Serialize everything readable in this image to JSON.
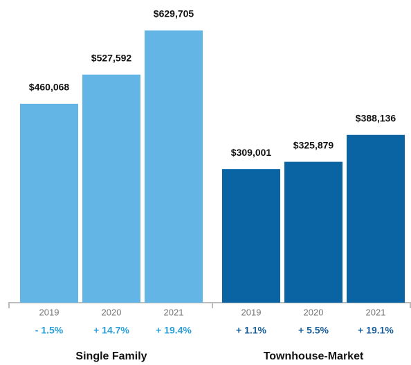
{
  "chart_data": {
    "type": "bar",
    "groups": [
      {
        "name": "Single Family",
        "color": "#63b5e5",
        "change_color": "#2a9fd8",
        "categories": [
          "2019",
          "2020",
          "2021"
        ],
        "values": [
          460068,
          527592,
          629705
        ],
        "value_labels": [
          "$460,068",
          "$527,592",
          "$629,705"
        ],
        "change_labels": [
          "- 1.5%",
          "+ 14.7%",
          "+ 19.4%"
        ]
      },
      {
        "name": "Townhouse-Market",
        "color": "#0a64a4",
        "change_color": "#1a5f9a",
        "categories": [
          "2019",
          "2020",
          "2021"
        ],
        "values": [
          309001,
          325879,
          388136
        ],
        "value_labels": [
          "$309,001",
          "$325,879",
          "$388,136"
        ],
        "change_labels": [
          "+ 1.1%",
          "+ 5.5%",
          "+ 19.1%"
        ]
      }
    ]
  }
}
